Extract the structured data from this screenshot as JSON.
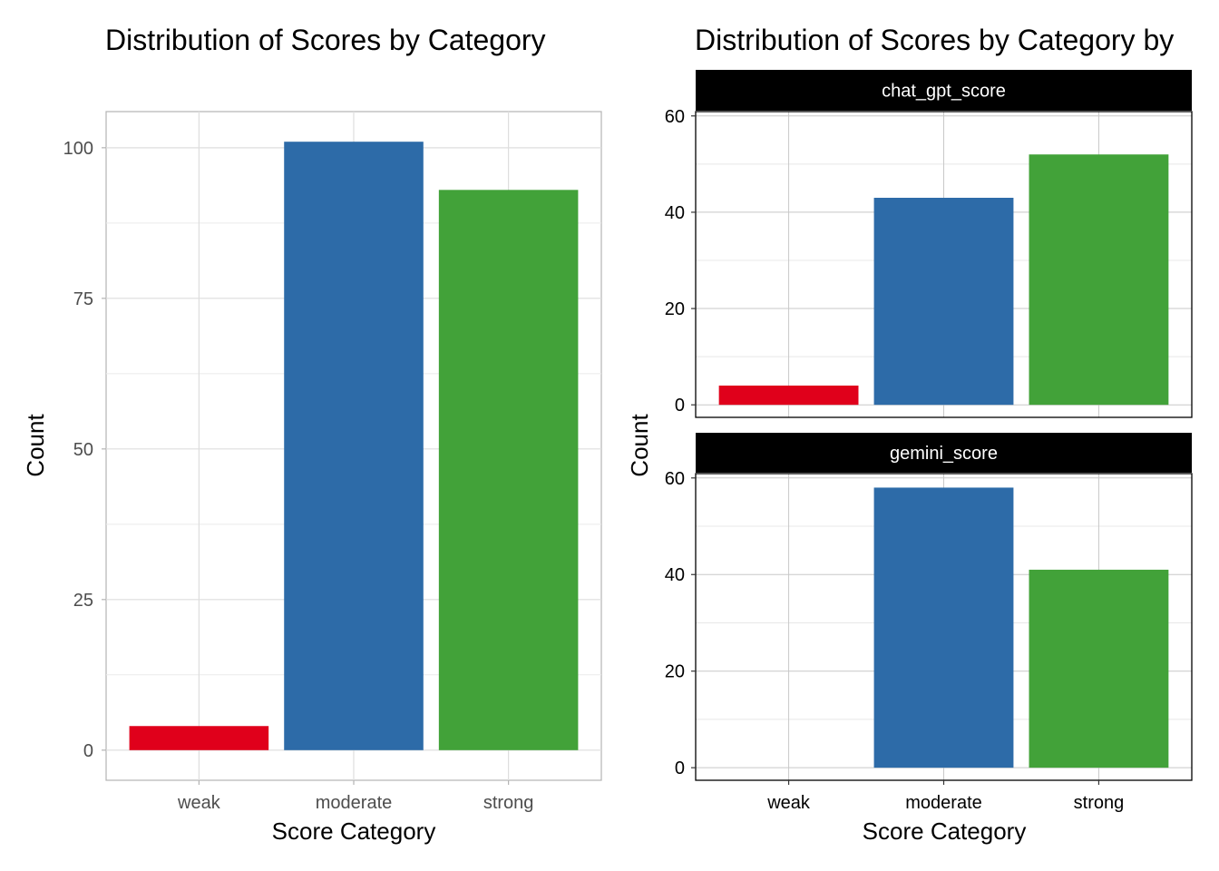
{
  "chart_data": [
    {
      "type": "bar",
      "title": "Distribution of Scores by Category",
      "xlabel": "Score Category",
      "ylabel": "Count",
      "categories": [
        "weak",
        "moderate",
        "strong"
      ],
      "values": [
        4,
        101,
        93
      ],
      "colors": [
        "#e0001b",
        "#2d6ba8",
        "#42a239"
      ],
      "ylim": [
        -5,
        106
      ],
      "yticks": [
        0,
        25,
        50,
        75,
        100
      ],
      "grid": true,
      "legend": "none"
    },
    {
      "type": "bar",
      "title": "Distribution of Scores by Category by",
      "xlabel": "Score Category",
      "ylabel": "Count",
      "categories": [
        "weak",
        "moderate",
        "strong"
      ],
      "colors": [
        "#e0001b",
        "#2d6ba8",
        "#42a239"
      ],
      "ylim": [
        -2.6,
        60.9
      ],
      "yticks": [
        0,
        20,
        40,
        60
      ],
      "grid": true,
      "legend": "none",
      "facets": [
        {
          "name": "chat_gpt_score",
          "values": [
            4,
            43,
            52
          ]
        },
        {
          "name": "gemini_score",
          "values": [
            0,
            58,
            41
          ]
        }
      ]
    }
  ]
}
